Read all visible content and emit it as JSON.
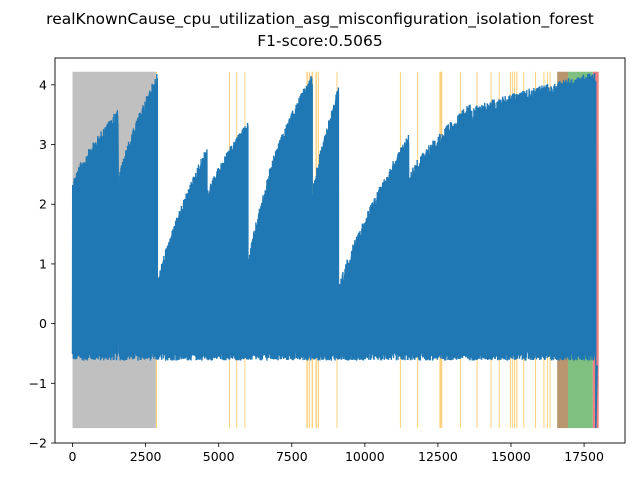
{
  "chart_data": {
    "type": "line",
    "title": "realKnownCause_cpu_utilization_asg_misconfiguration_isolation_forest",
    "subtitle": "F1-score:0.5065",
    "xlabel": "",
    "ylabel": "",
    "xlim": [
      -600,
      18900
    ],
    "ylim": [
      -2.0,
      4.45
    ],
    "xticks": [
      0,
      2500,
      5000,
      7500,
      10000,
      12500,
      15000,
      17500
    ],
    "xtick_labels": [
      "0",
      "2500",
      "5000",
      "7500",
      "10000",
      "12500",
      "15000",
      "17500"
    ],
    "yticks": [
      -2,
      -1,
      0,
      1,
      2,
      3,
      4
    ],
    "ytick_labels": [
      "−2",
      "−1",
      "0",
      "1",
      "2",
      "3",
      "4"
    ],
    "grid": false,
    "legend": "none",
    "band_y_range": [
      -1.75,
      4.22
    ],
    "colors": {
      "series": "#1f77b4",
      "gray_band": "#c0c0c0",
      "orange_band": "#ffd27f",
      "green_band": "#7fbf7f",
      "red_band": "#f08080",
      "brown_band": "#b8956f"
    },
    "series": [
      {
        "color": "#1f77b4",
        "segments": [
          {
            "x_start": 0,
            "x_end": 1550,
            "high_start": 2.4,
            "high_end": 3.6,
            "spike": true
          },
          {
            "x_start": 1600,
            "x_end": 2900,
            "high_start": 2.5,
            "high_end": 4.22,
            "spike": false
          },
          {
            "x_start": 2900,
            "x_end": 4600,
            "high_start": 0.7,
            "high_end": 3.0,
            "spike": false
          },
          {
            "x_start": 4600,
            "x_end": 6000,
            "high_start": 2.2,
            "high_end": 3.4,
            "spike": true
          },
          {
            "x_start": 6000,
            "x_end": 6700,
            "high_start": 1.0,
            "high_end": 2.5,
            "spike": false
          },
          {
            "x_start": 6700,
            "x_end": 8200,
            "high_start": 2.5,
            "high_end": 4.22,
            "spike": true
          },
          {
            "x_start": 8200,
            "x_end": 9100,
            "high_start": 2.2,
            "high_end": 4.0,
            "spike": false
          },
          {
            "x_start": 9100,
            "x_end": 11500,
            "high_start": 0.6,
            "high_end": 3.2,
            "spike": false
          },
          {
            "x_start": 11500,
            "x_end": 13600,
            "high_start": 2.5,
            "high_end": 3.7,
            "spike": true
          },
          {
            "x_start": 13600,
            "x_end": 17900,
            "high_start": 3.6,
            "high_end": 4.22,
            "spike": false
          }
        ],
        "low_range": [
          -0.62,
          -0.45
        ],
        "final_dip": {
          "x": 17900,
          "y": -1.75
        }
      }
    ],
    "bands": [
      {
        "color": "gray",
        "x_start": 0,
        "x_end": 2850
      },
      {
        "color": "orange",
        "x_start": 2850,
        "x_end": 2890
      },
      {
        "color": "orange",
        "x_start": 5350,
        "x_end": 5370
      },
      {
        "color": "orange",
        "x_start": 5600,
        "x_end": 5620
      },
      {
        "color": "orange",
        "x_start": 5880,
        "x_end": 5900
      },
      {
        "color": "orange",
        "x_start": 8000,
        "x_end": 8050
      },
      {
        "color": "orange",
        "x_start": 8080,
        "x_end": 8120
      },
      {
        "color": "orange",
        "x_start": 8180,
        "x_end": 8230
      },
      {
        "color": "orange",
        "x_start": 8310,
        "x_end": 8360
      },
      {
        "color": "orange",
        "x_start": 8390,
        "x_end": 8430
      },
      {
        "color": "orange",
        "x_start": 9030,
        "x_end": 9050
      },
      {
        "color": "orange",
        "x_start": 11200,
        "x_end": 11220
      },
      {
        "color": "orange",
        "x_start": 11790,
        "x_end": 11810
      },
      {
        "color": "orange",
        "x_start": 12550,
        "x_end": 12650
      },
      {
        "color": "orange",
        "x_start": 13250,
        "x_end": 13270
      },
      {
        "color": "orange",
        "x_start": 13820,
        "x_end": 13840
      },
      {
        "color": "orange",
        "x_start": 14300,
        "x_end": 14320
      },
      {
        "color": "orange",
        "x_start": 14580,
        "x_end": 14600
      },
      {
        "color": "orange",
        "x_start": 14960,
        "x_end": 14990
      },
      {
        "color": "orange",
        "x_start": 15030,
        "x_end": 15060
      },
      {
        "color": "orange",
        "x_start": 15100,
        "x_end": 15140
      },
      {
        "color": "orange",
        "x_start": 15180,
        "x_end": 15220
      },
      {
        "color": "orange",
        "x_start": 15420,
        "x_end": 15440
      },
      {
        "color": "orange",
        "x_start": 15820,
        "x_end": 15840
      },
      {
        "color": "orange",
        "x_start": 16110,
        "x_end": 16130
      },
      {
        "color": "orange",
        "x_start": 16230,
        "x_end": 16250
      },
      {
        "color": "orange",
        "x_start": 16320,
        "x_end": 16340
      },
      {
        "color": "brown",
        "x_start": 16580,
        "x_end": 16950
      },
      {
        "color": "green",
        "x_start": 16950,
        "x_end": 17800
      },
      {
        "color": "red",
        "x_start": 17800,
        "x_end": 18000
      }
    ]
  }
}
